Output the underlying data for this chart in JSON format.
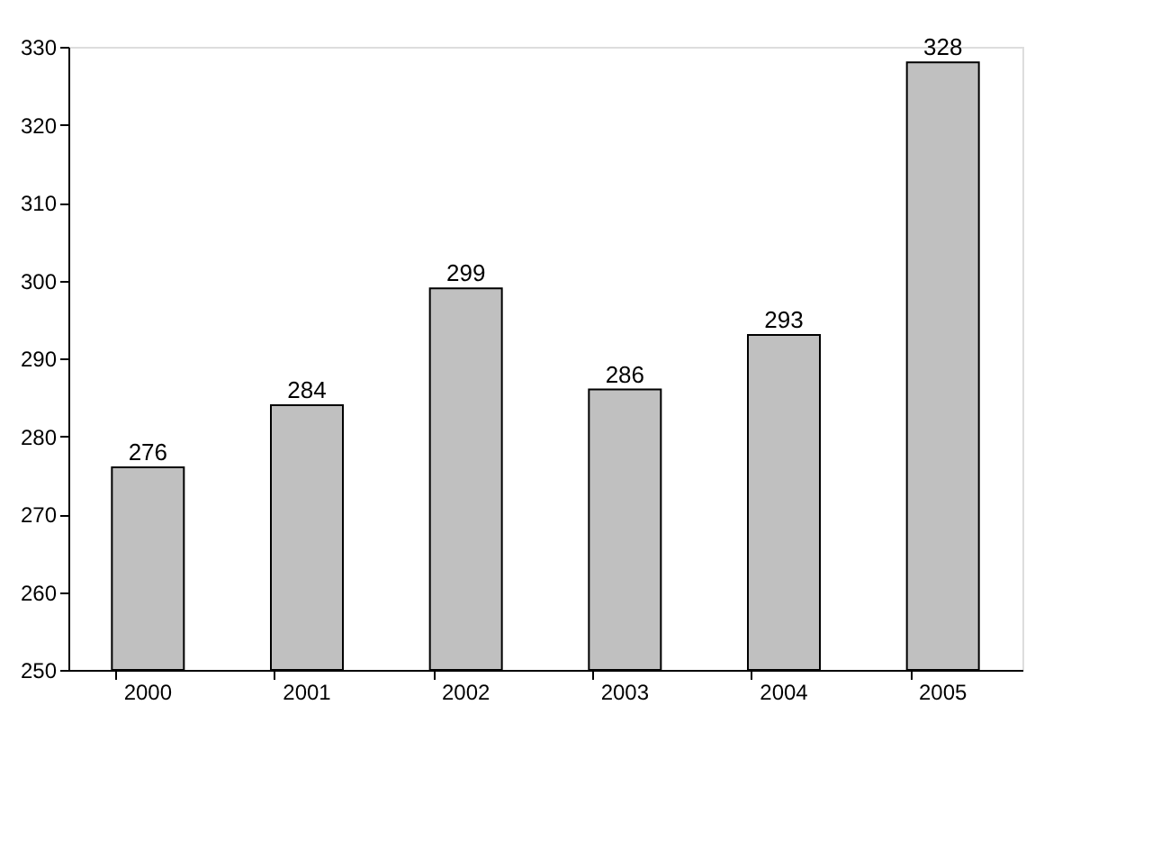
{
  "chart_data": {
    "type": "bar",
    "categories": [
      "2000",
      "2001",
      "2002",
      "2003",
      "2004",
      "2005"
    ],
    "values": [
      276,
      284,
      299,
      286,
      293,
      328
    ],
    "color": "#c0c0c0",
    "ylim": [
      250,
      330
    ],
    "yticks": [
      250,
      260,
      270,
      280,
      290,
      300,
      310,
      320,
      330
    ],
    "grid": false,
    "data_labels": true
  }
}
